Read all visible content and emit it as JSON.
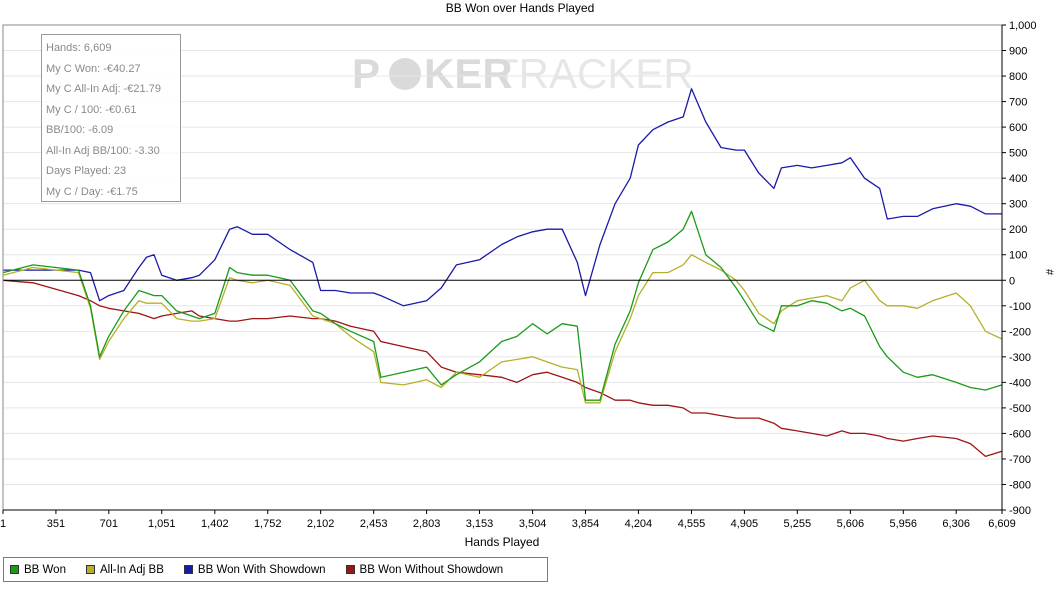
{
  "colors": {
    "bb_won": "#1a9b1a",
    "all_in_adj": "#b5b02a",
    "with_showdown": "#1a1aa8",
    "without_showdown": "#a01414",
    "zero_line": "#000000",
    "grid": "#e6e6e6"
  },
  "watermark": {
    "part1": "P",
    "part2": "KER",
    "part3": "TRACKER"
  },
  "stats": [
    "Hands: 6,609",
    "My C Won: -€40.27",
    "My C All-In Adj: -€21.79",
    "My C / 100: -€0.61",
    "BB/100: -6.09",
    "All-In Adj BB/100: -3.30",
    "Days Played: 23",
    "My C / Day: -€1.75"
  ],
  "legend": [
    {
      "label": "BB Won",
      "color": "#1a9b1a"
    },
    {
      "label": "All-In Adj BB",
      "color": "#b5b02a"
    },
    {
      "label": "BB Won With Showdown",
      "color": "#1a1aa8"
    },
    {
      "label": "BB Won Without Showdown",
      "color": "#a01414"
    }
  ],
  "chart_data": {
    "type": "line",
    "title": "BB Won over Hands Played",
    "xlabel": "Hands Played",
    "ylabel": "#",
    "xlim": [
      1,
      6609
    ],
    "ylim": [
      -900,
      1000
    ],
    "x_ticks": [
      1,
      351,
      701,
      1051,
      1402,
      1752,
      2102,
      2453,
      2803,
      3153,
      3504,
      3854,
      4204,
      4555,
      4905,
      5255,
      5606,
      5956,
      6306,
      6609
    ],
    "x_tick_labels": [
      "1",
      "351",
      "701",
      "1,051",
      "1,402",
      "1,752",
      "2,102",
      "2,453",
      "2,803",
      "3,153",
      "3,504",
      "3,854",
      "4,204",
      "4,555",
      "4,905",
      "5,255",
      "5,606",
      "5,956",
      "6,306",
      "6,609"
    ],
    "y_ticks": [
      1000,
      900,
      800,
      700,
      600,
      500,
      400,
      300,
      200,
      100,
      0,
      -100,
      -200,
      -300,
      -400,
      -500,
      -600,
      -700,
      -800,
      -900
    ],
    "y_tick_labels": [
      "1,000",
      "900",
      "800",
      "700",
      "600",
      "500",
      "400",
      "300",
      "200",
      "100",
      "0",
      "-100",
      "-200",
      "-300",
      "-400",
      "-500",
      "-600",
      "-700",
      "-800",
      "-900"
    ],
    "grid": true,
    "legend_position": "bottom-left",
    "series": [
      {
        "name": "BB Won",
        "color": "#1a9b1a",
        "x": [
          1,
          200,
          500,
          580,
          640,
          700,
          800,
          900,
          950,
          1000,
          1051,
          1150,
          1250,
          1300,
          1402,
          1500,
          1550,
          1650,
          1752,
          1900,
          2050,
          2102,
          2200,
          2300,
          2453,
          2500,
          2650,
          2803,
          2900,
          3000,
          3153,
          3300,
          3400,
          3504,
          3600,
          3700,
          3800,
          3854,
          3950,
          4050,
          4150,
          4204,
          4300,
          4400,
          4500,
          4555,
          4650,
          4750,
          4850,
          4905,
          5000,
          5100,
          5150,
          5255,
          5350,
          5450,
          5550,
          5606,
          5700,
          5800,
          5850,
          5956,
          6050,
          6150,
          6306,
          6400,
          6500,
          6609
        ],
        "y": [
          30,
          60,
          40,
          -100,
          -300,
          -220,
          -120,
          -40,
          -50,
          -60,
          -60,
          -120,
          -140,
          -150,
          -130,
          50,
          30,
          20,
          20,
          0,
          -120,
          -130,
          -170,
          -200,
          -240,
          -380,
          -360,
          -340,
          -410,
          -370,
          -320,
          -240,
          -220,
          -170,
          -210,
          -170,
          -180,
          -470,
          -470,
          -250,
          -120,
          -10,
          120,
          150,
          200,
          270,
          100,
          50,
          -30,
          -80,
          -170,
          -200,
          -100,
          -100,
          -80,
          -90,
          -120,
          -110,
          -140,
          -260,
          -300,
          -360,
          -380,
          -370,
          -400,
          -420,
          -430,
          -410
        ]
      },
      {
        "name": "All-In Adj BB",
        "color": "#b5b02a",
        "x": [
          1,
          200,
          500,
          580,
          640,
          700,
          800,
          900,
          950,
          1000,
          1051,
          1150,
          1250,
          1300,
          1402,
          1500,
          1550,
          1650,
          1752,
          1900,
          2050,
          2102,
          2200,
          2300,
          2453,
          2500,
          2650,
          2803,
          2900,
          3000,
          3153,
          3300,
          3400,
          3504,
          3600,
          3700,
          3800,
          3854,
          3950,
          4050,
          4150,
          4204,
          4300,
          4400,
          4500,
          4555,
          4650,
          4750,
          4850,
          4905,
          5000,
          5100,
          5150,
          5255,
          5350,
          5450,
          5550,
          5606,
          5700,
          5800,
          5850,
          5956,
          6050,
          6150,
          6306,
          6400,
          6500,
          6609
        ],
        "y": [
          20,
          50,
          30,
          -110,
          -310,
          -240,
          -150,
          -80,
          -90,
          -90,
          -90,
          -150,
          -160,
          -160,
          -150,
          10,
          0,
          -10,
          0,
          -20,
          -140,
          -150,
          -170,
          -220,
          -280,
          -400,
          -410,
          -390,
          -420,
          -360,
          -380,
          -320,
          -310,
          -300,
          -320,
          -340,
          -350,
          -480,
          -480,
          -280,
          -150,
          -60,
          30,
          30,
          60,
          100,
          70,
          40,
          0,
          -40,
          -130,
          -170,
          -120,
          -80,
          -70,
          -60,
          -80,
          -30,
          0,
          -80,
          -100,
          -100,
          -110,
          -80,
          -50,
          -100,
          -200,
          -230
        ]
      },
      {
        "name": "BB Won With Showdown",
        "color": "#1a1aa8",
        "x": [
          1,
          300,
          500,
          580,
          640,
          700,
          800,
          900,
          950,
          1000,
          1051,
          1150,
          1250,
          1300,
          1402,
          1500,
          1550,
          1650,
          1752,
          1900,
          2050,
          2102,
          2200,
          2300,
          2453,
          2500,
          2650,
          2803,
          2900,
          3000,
          3153,
          3300,
          3400,
          3504,
          3600,
          3700,
          3800,
          3854,
          3950,
          4050,
          4150,
          4204,
          4300,
          4400,
          4500,
          4555,
          4650,
          4750,
          4850,
          4905,
          5000,
          5100,
          5150,
          5255,
          5350,
          5450,
          5550,
          5606,
          5700,
          5800,
          5850,
          5956,
          6050,
          6150,
          6306,
          6400,
          6500,
          6609
        ],
        "y": [
          40,
          40,
          40,
          30,
          -80,
          -60,
          -40,
          50,
          90,
          100,
          20,
          0,
          10,
          20,
          80,
          200,
          210,
          180,
          180,
          120,
          70,
          -40,
          -40,
          -50,
          -50,
          -60,
          -100,
          -80,
          -30,
          60,
          80,
          140,
          170,
          190,
          200,
          200,
          70,
          -60,
          140,
          300,
          400,
          530,
          590,
          620,
          640,
          750,
          620,
          520,
          510,
          510,
          420,
          360,
          440,
          450,
          440,
          450,
          460,
          480,
          400,
          360,
          240,
          250,
          250,
          280,
          300,
          290,
          260,
          260
        ]
      },
      {
        "name": "BB Won Without Showdown",
        "color": "#a01414",
        "x": [
          1,
          200,
          500,
          580,
          640,
          700,
          800,
          900,
          950,
          1000,
          1051,
          1150,
          1250,
          1300,
          1402,
          1500,
          1550,
          1650,
          1752,
          1900,
          2050,
          2102,
          2200,
          2300,
          2453,
          2500,
          2650,
          2803,
          2900,
          3000,
          3153,
          3300,
          3400,
          3504,
          3600,
          3700,
          3800,
          3854,
          3950,
          4050,
          4150,
          4204,
          4300,
          4400,
          4500,
          4555,
          4650,
          4750,
          4850,
          4905,
          5000,
          5100,
          5150,
          5255,
          5350,
          5450,
          5550,
          5606,
          5700,
          5800,
          5850,
          5956,
          6050,
          6150,
          6306,
          6400,
          6500,
          6609
        ],
        "y": [
          0,
          -10,
          -60,
          -80,
          -100,
          -110,
          -120,
          -130,
          -140,
          -150,
          -140,
          -130,
          -120,
          -140,
          -150,
          -160,
          -160,
          -150,
          -150,
          -140,
          -150,
          -150,
          -160,
          -180,
          -200,
          -240,
          -260,
          -280,
          -340,
          -360,
          -370,
          -380,
          -400,
          -370,
          -360,
          -380,
          -400,
          -420,
          -440,
          -470,
          -470,
          -480,
          -490,
          -490,
          -500,
          -520,
          -520,
          -530,
          -540,
          -540,
          -540,
          -560,
          -580,
          -590,
          -600,
          -610,
          -590,
          -600,
          -600,
          -610,
          -620,
          -630,
          -620,
          -610,
          -620,
          -640,
          -690,
          -670
        ]
      }
    ]
  }
}
